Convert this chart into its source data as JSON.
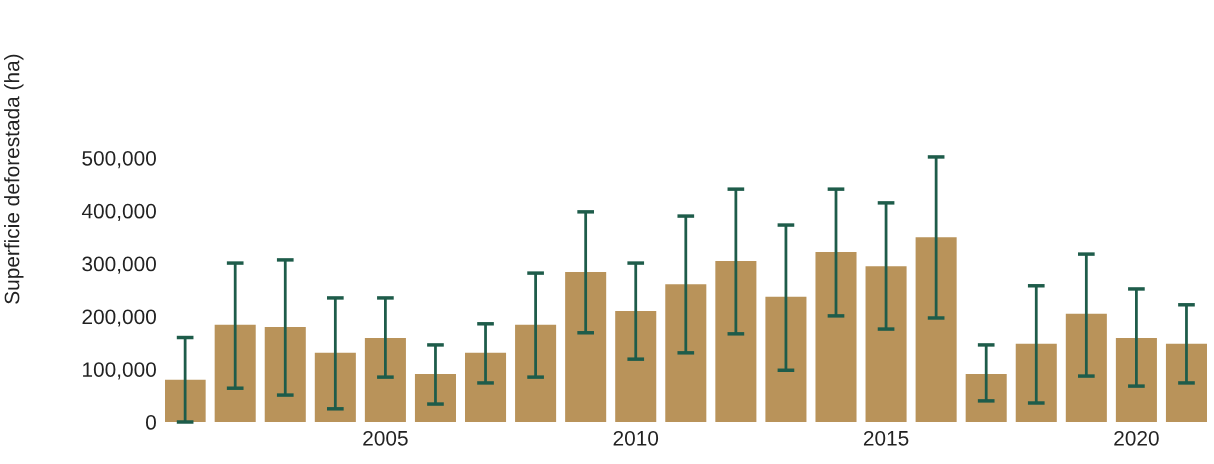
{
  "chart_data": {
    "type": "bar",
    "ylabel": "Superficie deforestada (ha)",
    "x": [
      2001,
      2002,
      2003,
      2004,
      2005,
      2006,
      2007,
      2008,
      2009,
      2010,
      2011,
      2012,
      2013,
      2014,
      2015,
      2016,
      2017,
      2018,
      2019,
      2020,
      2021
    ],
    "values": [
      80000,
      184000,
      180000,
      131000,
      159000,
      91000,
      131000,
      184000,
      284000,
      210000,
      261000,
      305000,
      237000,
      322000,
      295000,
      350000,
      91000,
      148000,
      205000,
      159000,
      148000
    ],
    "errors": [
      [
        0,
        160000
      ],
      [
        64000,
        301000
      ],
      [
        51000,
        307000
      ],
      [
        25000,
        235000
      ],
      [
        85000,
        235000
      ],
      [
        34000,
        146000
      ],
      [
        74000,
        186000
      ],
      [
        85000,
        282000
      ],
      [
        169000,
        398000
      ],
      [
        119000,
        301000
      ],
      [
        131000,
        390000
      ],
      [
        167000,
        441000
      ],
      [
        98000,
        373000
      ],
      [
        201000,
        441000
      ],
      [
        176000,
        415000
      ],
      [
        197000,
        502000
      ],
      [
        40000,
        146000
      ],
      [
        36000,
        258000
      ],
      [
        87000,
        318000
      ],
      [
        68000,
        252000
      ],
      [
        74000,
        222000
      ]
    ],
    "color": "#b9935a",
    "xlim": [
      2000.6,
      2021.55
    ],
    "xticks": [
      2005,
      2010,
      2015,
      2020
    ],
    "ylim": [
      0,
      500000
    ],
    "yticks": [
      {
        "value": 0,
        "label": "0"
      },
      {
        "value": 100000,
        "label": "100,000"
      },
      {
        "value": 200000,
        "label": "200,000"
      },
      {
        "value": 300000,
        "label": "300,000"
      },
      {
        "value": 400000,
        "label": "400,000"
      },
      {
        "value": 500000,
        "label": "500,000"
      }
    ],
    "grid": false,
    "legend": false
  }
}
